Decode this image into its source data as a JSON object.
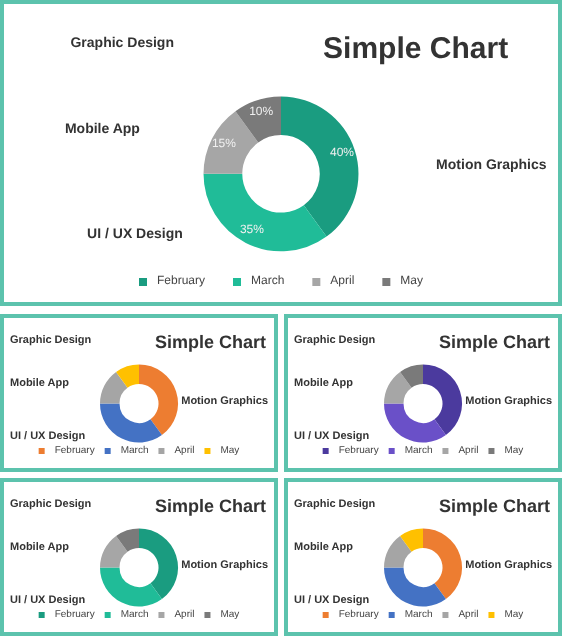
{
  "chart_data": [
    {
      "type": "donut",
      "title": "Simple Chart",
      "annotations": [
        "Graphic Design",
        "Mobile App",
        "UI / UX Design",
        "Motion Graphics"
      ],
      "categories": [
        "February",
        "March",
        "April",
        "May"
      ],
      "values": [
        40,
        35,
        15,
        10
      ],
      "value_labels": [
        "40%",
        "35%",
        "15%",
        "10%"
      ],
      "colors": [
        "#1a9c80",
        "#20bc98",
        "#a6a6a6",
        "#7a7a7a"
      ],
      "legend": "bottom"
    },
    {
      "type": "donut",
      "title": "Simple Chart",
      "annotations": [
        "Graphic Design",
        "Mobile App",
        "UI / UX Design",
        "Motion Graphics"
      ],
      "categories": [
        "February",
        "March",
        "April",
        "May"
      ],
      "values": [
        40,
        35,
        15,
        10
      ],
      "colors": [
        "#ed7d31",
        "#4472c4",
        "#a5a5a5",
        "#ffc000"
      ],
      "legend": "bottom"
    },
    {
      "type": "donut",
      "title": "Simple Chart",
      "annotations": [
        "Graphic Design",
        "Mobile App",
        "UI / UX Design",
        "Motion Graphics"
      ],
      "categories": [
        "February",
        "March",
        "April",
        "May"
      ],
      "values": [
        40,
        35,
        15,
        10
      ],
      "colors": [
        "#4b3a9e",
        "#6a50c8",
        "#a6a6a6",
        "#7a7a7a"
      ],
      "legend": "bottom"
    },
    {
      "type": "donut",
      "title": "Simple Chart",
      "annotations": [
        "Graphic Design",
        "Mobile App",
        "UI / UX Design",
        "Motion Graphics"
      ],
      "categories": [
        "February",
        "March",
        "April",
        "May"
      ],
      "values": [
        40,
        35,
        15,
        10
      ],
      "colors": [
        "#1a9c80",
        "#20bc98",
        "#a6a6a6",
        "#7a7a7a"
      ],
      "legend": "bottom"
    },
    {
      "type": "donut",
      "title": "Simple Chart",
      "annotations": [
        "Graphic Design",
        "Mobile App",
        "UI / UX Design",
        "Motion Graphics"
      ],
      "categories": [
        "February",
        "March",
        "April",
        "May"
      ],
      "values": [
        40,
        35,
        15,
        10
      ],
      "colors": [
        "#ed7d31",
        "#4472c4",
        "#a5a5a5",
        "#ffc000"
      ],
      "legend": "bottom"
    }
  ]
}
